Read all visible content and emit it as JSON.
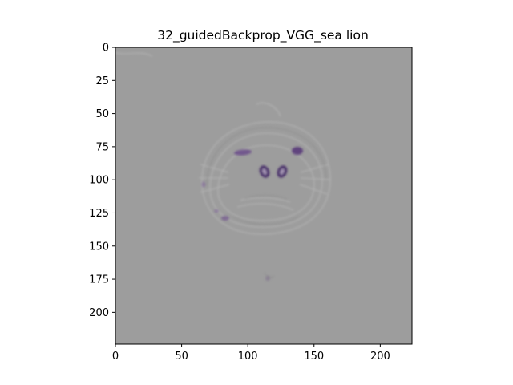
{
  "figure": {
    "title": "32_guidedBackprop_VGG_sea lion",
    "image_description": "guided backpropagation saliency map: mostly flat gray with faint edges of a sea lion face; purple highlights on eyes and nostrils",
    "colors": {
      "background": "#9d9d9d",
      "highlight": "#5a3a7a",
      "edge": "#b8b8b8"
    }
  },
  "axes": {
    "xlim": [
      0,
      224
    ],
    "ylim": [
      224,
      0
    ],
    "x_ticks": [
      0,
      50,
      100,
      150,
      200
    ],
    "y_ticks": [
      0,
      25,
      50,
      75,
      100,
      125,
      150,
      175,
      200
    ],
    "x_tick_labels": [
      "0",
      "50",
      "100",
      "150",
      "200"
    ],
    "y_tick_labels": [
      "0",
      "25",
      "50",
      "75",
      "100",
      "125",
      "150",
      "175",
      "200"
    ]
  },
  "features": [
    {
      "name": "left-eye",
      "cx": 97,
      "cy": 80
    },
    {
      "name": "right-eye",
      "cx": 138,
      "cy": 79
    },
    {
      "name": "left-nostril",
      "cx": 112,
      "cy": 93
    },
    {
      "name": "right-nostril",
      "cx": 126,
      "cy": 93
    }
  ]
}
